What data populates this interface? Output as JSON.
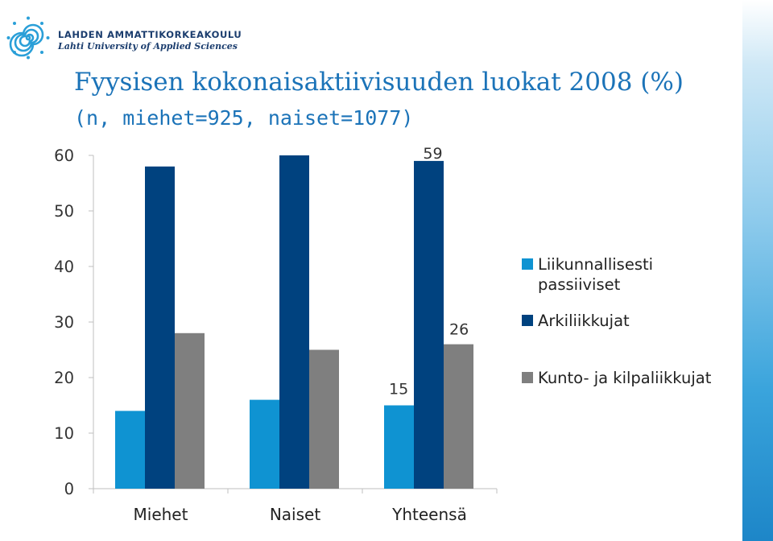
{
  "header": {
    "org_name": "LAHDEN AMMATTIKORKEAKOULU",
    "org_subtitle": "Lahti University of Applied Sciences",
    "title": "Fyysisen kokonaisaktiivisuuden luokat 2008 (%)",
    "subtitle": "(n, miehet=925, naiset=1077)"
  },
  "colors": {
    "title": "#1b73b8",
    "logo": "#2a9fd8",
    "axis": "#bfbfbf"
  },
  "chart_data": {
    "type": "bar",
    "title": "Fyysisen kokonaisaktiivisuuden luokat 2008 (%)",
    "subtitle": "(n, miehet=925, naiset=1077)",
    "categories": [
      "Miehet",
      "Naiset",
      "Yhteensä"
    ],
    "series": [
      {
        "name": "Liikunnallisesti passiiviset",
        "color": "#0f93d2",
        "values": [
          14,
          16,
          15
        ]
      },
      {
        "name": "Arkiliikkujat",
        "color": "#00427f",
        "values": [
          58,
          60,
          59
        ]
      },
      {
        "name": "Kunto- ja kilpaliikkujat",
        "color": "#7f7f7f",
        "values": [
          28,
          25,
          26
        ]
      }
    ],
    "data_labels": [
      {
        "text": "59",
        "category": 2,
        "series": 1
      },
      {
        "text": "26",
        "category": 2,
        "series": 2
      },
      {
        "text": "15",
        "category": 2,
        "series": 0
      }
    ],
    "yticks": [
      0,
      10,
      20,
      30,
      40,
      50,
      60
    ],
    "ylim": [
      0,
      60
    ],
    "xlabel": "",
    "ylabel": "",
    "grid": false,
    "legend_position": "right"
  }
}
